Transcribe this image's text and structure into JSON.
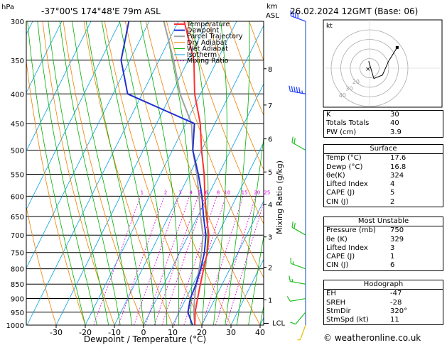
{
  "header": {
    "location": "-37°00'S  174°48'E  79m  ASL",
    "datetime": "26.02.2024  12GMT  (Base: 06)",
    "hpa_label": "hPa",
    "km_label": "km",
    "asl_label": "ASL"
  },
  "chart_data": {
    "type": "skew-t",
    "xlabel": "Dewpoint / Temperature (°C)",
    "ylabel_right": "Mixing Ratio (g/kg)",
    "x_ticks": [
      -30,
      -20,
      -10,
      0,
      10,
      20,
      30,
      40
    ],
    "x_tick_labels": [
      "-30",
      "-20",
      "-10",
      "0",
      "10",
      "20",
      "30",
      "40"
    ],
    "pressure_levels": [
      300,
      350,
      400,
      450,
      500,
      550,
      600,
      650,
      700,
      750,
      800,
      850,
      900,
      950,
      1000
    ],
    "pressure_labels": [
      "300",
      "350",
      "400",
      "450",
      "500",
      "550",
      "600",
      "650",
      "700",
      "750",
      "800",
      "850",
      "900",
      "950",
      "1000"
    ],
    "km_ticks": [
      {
        "km": 1,
        "p": 905,
        "label": "1"
      },
      {
        "km": 2,
        "p": 795,
        "label": "2"
      },
      {
        "km": 3,
        "p": 705,
        "label": "3"
      },
      {
        "km": 4,
        "p": 620,
        "label": "4"
      },
      {
        "km": 5,
        "p": 545,
        "label": "5"
      },
      {
        "km": 6,
        "p": 478,
        "label": "6"
      },
      {
        "km": 7,
        "p": 418,
        "label": "7"
      },
      {
        "km": 8,
        "p": 362,
        "label": "8"
      }
    ],
    "lcl": {
      "p": 993,
      "label": "LCL"
    },
    "mixing_ratio_labels": [
      "1",
      "2",
      "3",
      "4",
      "5",
      "6",
      "8",
      "10",
      "15",
      "20",
      "25"
    ],
    "mixing_ratio_values": [
      1,
      2,
      3,
      4,
      5,
      6,
      8,
      10,
      15,
      20,
      25
    ],
    "legend": [
      "Temperature",
      "Dewpoint",
      "Parcel Trajectory",
      "Dry Adiabat",
      "Wet Adiabat",
      "Isotherm",
      "Mixing Ratio"
    ],
    "temperature": [
      [
        1000,
        17.6
      ],
      [
        950,
        15.5
      ],
      [
        900,
        14
      ],
      [
        850,
        12.5
      ],
      [
        800,
        11
      ],
      [
        750,
        9.5
      ],
      [
        700,
        7
      ],
      [
        650,
        3
      ],
      [
        600,
        -1
      ],
      [
        550,
        -5
      ],
      [
        500,
        -10
      ],
      [
        450,
        -15
      ],
      [
        400,
        -22
      ],
      [
        350,
        -28
      ],
      [
        300,
        -38
      ]
    ],
    "dewpoint": [
      [
        1000,
        16.8
      ],
      [
        950,
        13
      ],
      [
        900,
        11.5
      ],
      [
        850,
        11
      ],
      [
        800,
        10
      ],
      [
        750,
        8.5
      ],
      [
        700,
        6
      ],
      [
        650,
        2
      ],
      [
        600,
        -2
      ],
      [
        550,
        -7
      ],
      [
        500,
        -13
      ],
      [
        450,
        -17
      ],
      [
        400,
        -45
      ],
      [
        350,
        -53
      ],
      [
        300,
        -57
      ]
    ],
    "parcel": [
      [
        1000,
        17.6
      ],
      [
        950,
        15
      ],
      [
        900,
        13
      ],
      [
        850,
        11
      ],
      [
        800,
        9.5
      ],
      [
        750,
        7.5
      ],
      [
        700,
        5
      ],
      [
        650,
        1
      ],
      [
        600,
        -3
      ],
      [
        550,
        -7.5
      ],
      [
        500,
        -13
      ],
      [
        450,
        -18
      ],
      [
        400,
        -27
      ],
      [
        350,
        -35
      ],
      [
        300,
        -45
      ]
    ],
    "wind_barbs": [
      {
        "p": 1000,
        "dir": 200,
        "spd": 5
      },
      {
        "p": 950,
        "dir": 220,
        "spd": 10
      },
      {
        "p": 900,
        "dir": 260,
        "spd": 12
      },
      {
        "p": 850,
        "dir": 280,
        "spd": 15
      },
      {
        "p": 800,
        "dir": 290,
        "spd": 15
      },
      {
        "p": 700,
        "dir": 300,
        "spd": 20
      },
      {
        "p": 500,
        "dir": 300,
        "spd": 20
      },
      {
        "p": 400,
        "dir": 280,
        "spd": 55
      },
      {
        "p": 300,
        "dir": 290,
        "spd": 40
      }
    ],
    "hodograph": {
      "label": "kt",
      "ring_labels": [
        "20",
        "30",
        "40"
      ],
      "points": [
        [
          -1,
          8
        ],
        [
          5,
          -12
        ],
        [
          15,
          -8
        ],
        [
          22,
          8
        ],
        [
          32,
          24
        ]
      ]
    }
  },
  "indices": [
    {
      "label": "K",
      "value": "30"
    },
    {
      "label": "Totals Totals",
      "value": "40"
    },
    {
      "label": "PW (cm)",
      "value": "3.9"
    }
  ],
  "surface": {
    "title": "Surface",
    "rows": [
      {
        "label": "Temp (°C)",
        "value": "17.6"
      },
      {
        "label": "Dewp (°C)",
        "value": "16.8"
      },
      {
        "label": "θe(K)",
        "value": "324"
      },
      {
        "label": "Lifted Index",
        "value": "4"
      },
      {
        "label": "CAPE (J)",
        "value": "5"
      },
      {
        "label": "CIN (J)",
        "value": "2"
      }
    ]
  },
  "most_unstable": {
    "title": "Most Unstable",
    "rows": [
      {
        "label": "Pressure (mb)",
        "value": "750"
      },
      {
        "label": "θe (K)",
        "value": "329"
      },
      {
        "label": "Lifted Index",
        "value": "3"
      },
      {
        "label": "CAPE (J)",
        "value": "1"
      },
      {
        "label": "CIN (J)",
        "value": "6"
      }
    ]
  },
  "hodograph_table": {
    "title": "Hodograph",
    "rows": [
      {
        "label": "EH",
        "value": "-47"
      },
      {
        "label": "SREH",
        "value": "-28"
      },
      {
        "label": "StmDir",
        "value": "320°"
      },
      {
        "label": "StmSpd (kt)",
        "value": "11"
      }
    ]
  },
  "footer": "© weatheronline.co.uk",
  "colors": {
    "temperature": "#ff3030",
    "dewpoint": "#2030d0",
    "parcel": "#a0a0a0",
    "dry_adiabat": "#f08000",
    "wet_adiabat": "#00b000",
    "isotherm": "#00a0e0",
    "mixing_ratio": "#e000e0"
  }
}
